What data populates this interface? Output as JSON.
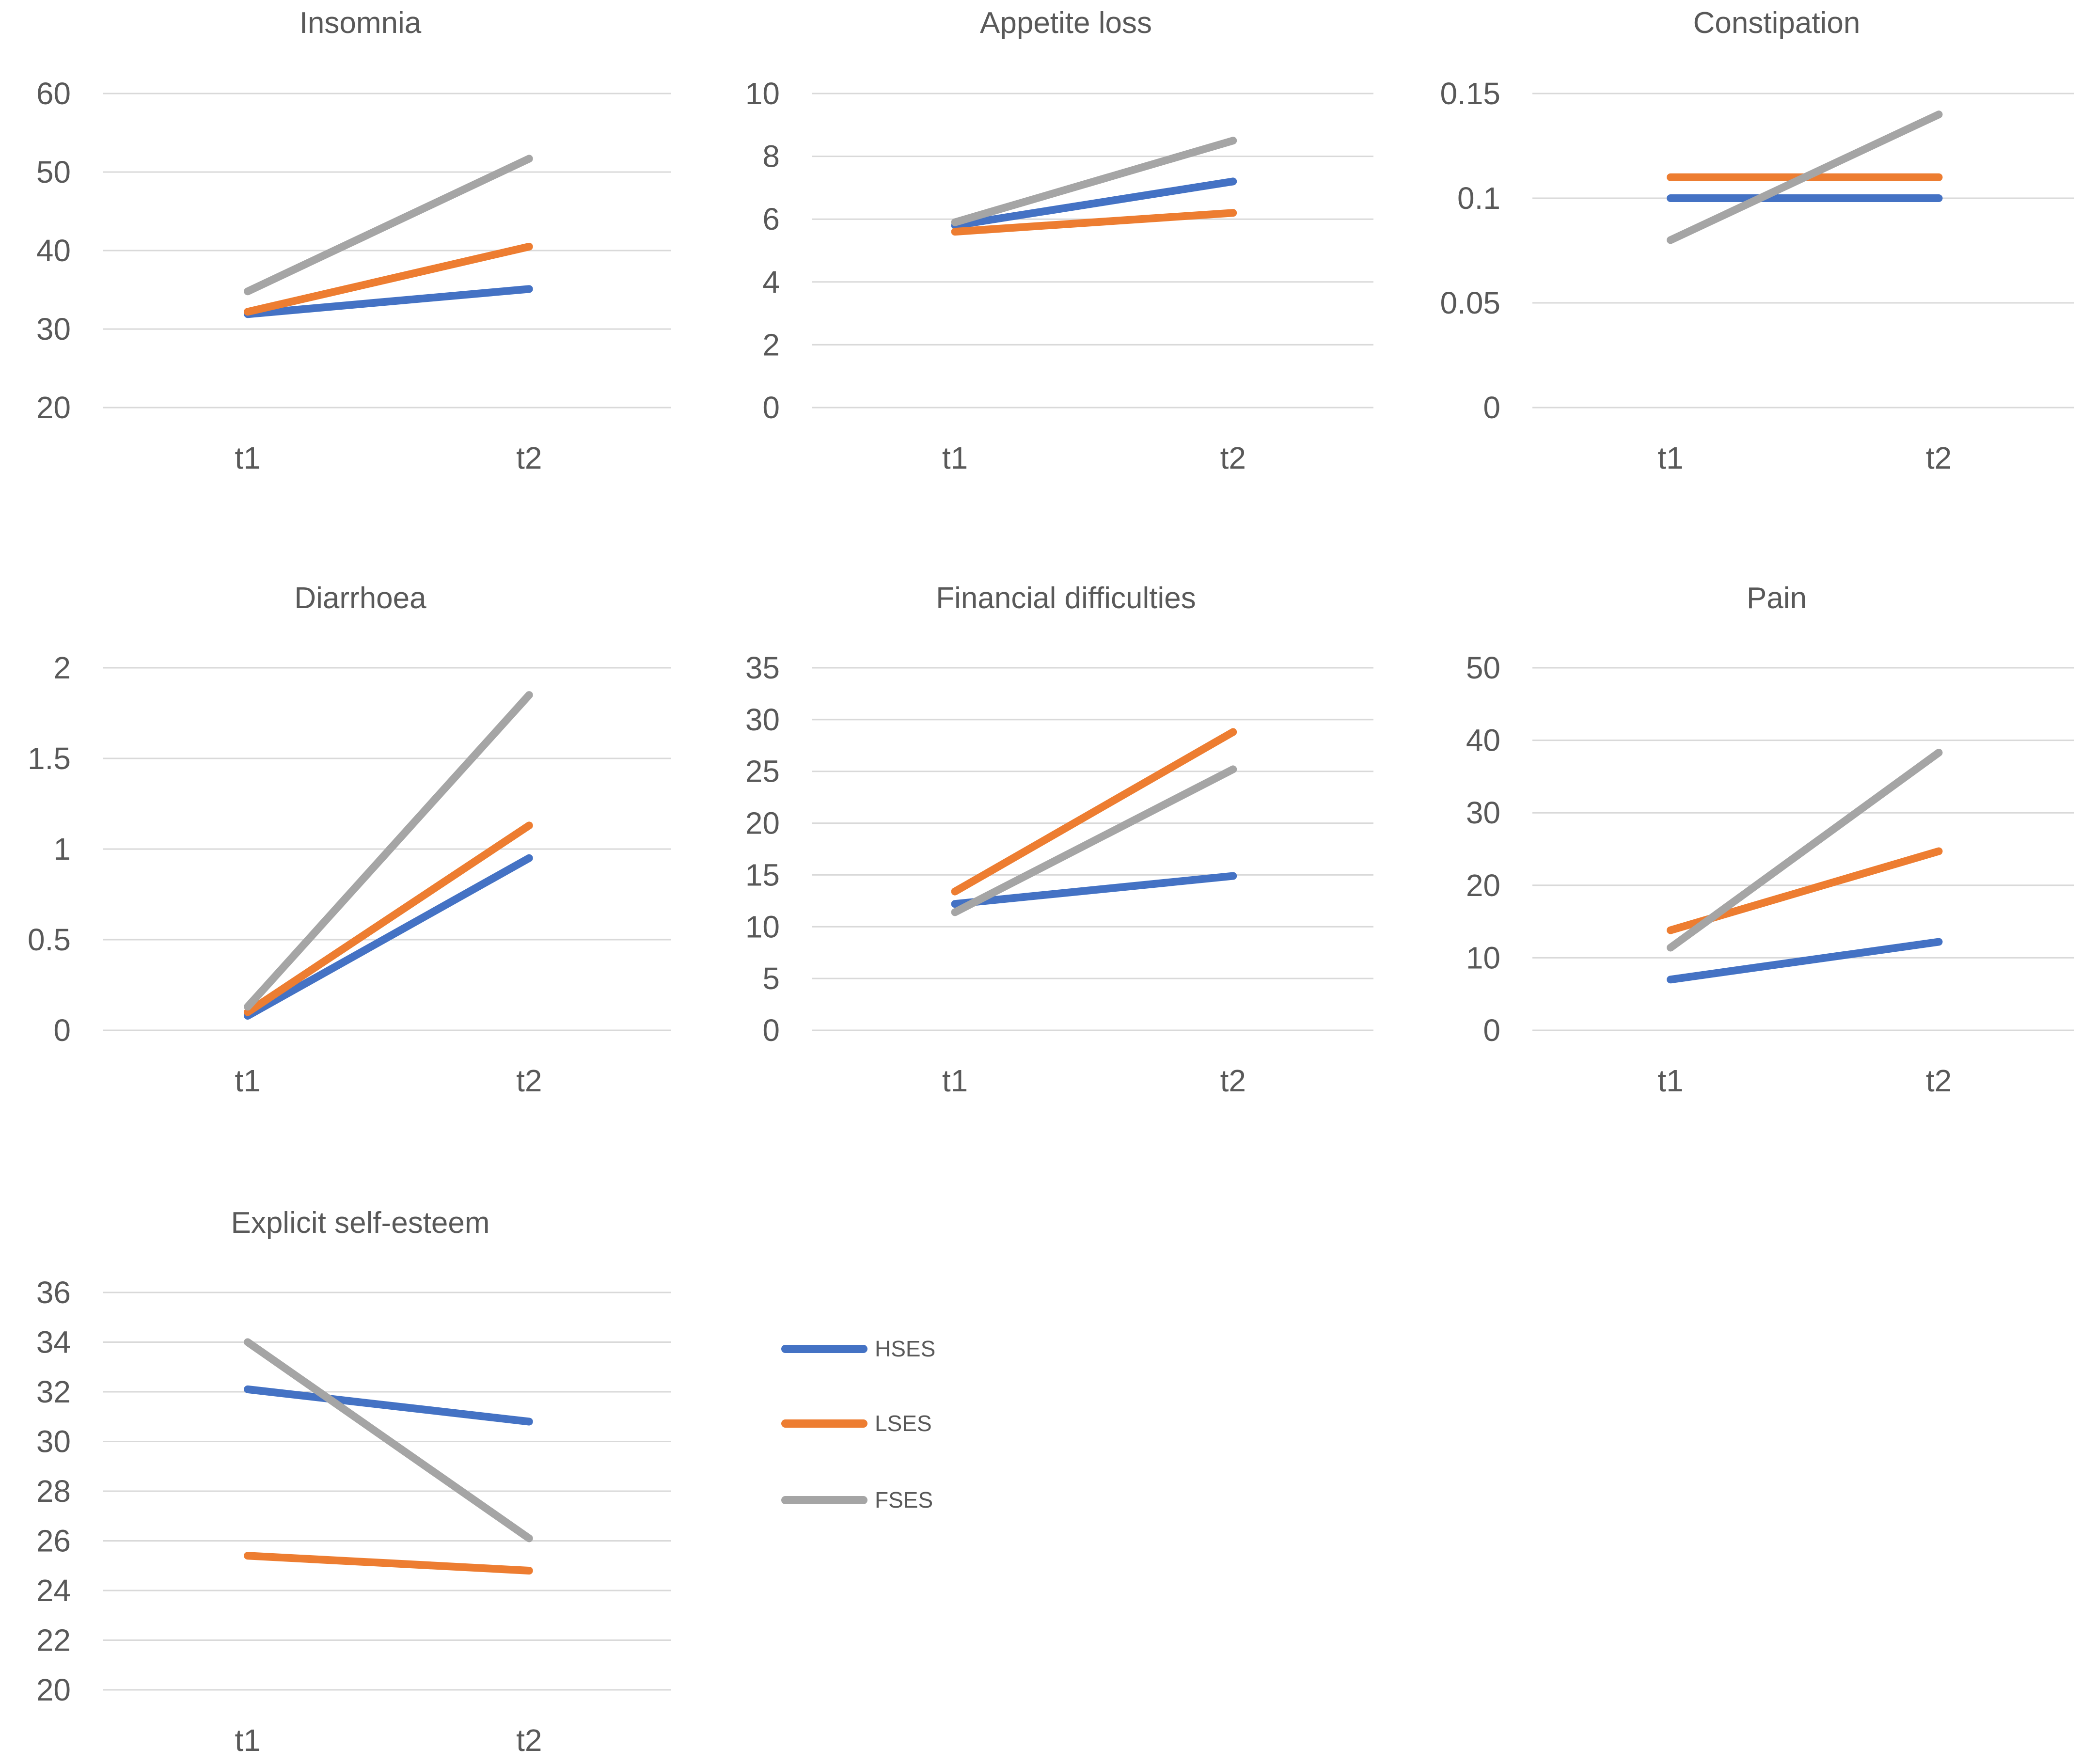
{
  "figure": {
    "background": "#FFFFFF",
    "grid_color": "#D9D9D9",
    "text_color": "#595959"
  },
  "legend": {
    "items": [
      {
        "label": "HSES",
        "color": "#4472C4"
      },
      {
        "label": "LSES",
        "color": "#ED7D31"
      },
      {
        "label": "FSES",
        "color": "#A5A5A5"
      }
    ]
  },
  "chart_data": [
    {
      "type": "line",
      "title": "Insomnia",
      "categories": [
        "t1",
        "t2"
      ],
      "ylim": [
        20,
        60
      ],
      "yticks": [
        20,
        30,
        40,
        50,
        60
      ],
      "ytick_labels": [
        "20",
        "30",
        "40",
        "50",
        "60"
      ],
      "series": [
        {
          "name": "HSES",
          "values": [
            31.9,
            35.1
          ]
        },
        {
          "name": "LSES",
          "values": [
            32.2,
            40.5
          ]
        },
        {
          "name": "FSES",
          "values": [
            34.8,
            51.7
          ]
        }
      ]
    },
    {
      "type": "line",
      "title": "Appetite loss",
      "categories": [
        "t1",
        "t2"
      ],
      "ylim": [
        0,
        10
      ],
      "yticks": [
        0,
        2,
        4,
        6,
        8,
        10
      ],
      "ytick_labels": [
        "0",
        "2",
        "4",
        "6",
        "8",
        "10"
      ],
      "series": [
        {
          "name": "HSES",
          "values": [
            5.8,
            7.2
          ]
        },
        {
          "name": "LSES",
          "values": [
            5.6,
            6.2
          ]
        },
        {
          "name": "FSES",
          "values": [
            5.9,
            8.5
          ]
        }
      ]
    },
    {
      "type": "line",
      "title": "Constipation",
      "categories": [
        "t1",
        "t2"
      ],
      "ylim": [
        0,
        0.15
      ],
      "yticks": [
        0,
        0.05,
        0.1,
        0.15
      ],
      "ytick_labels": [
        "0",
        "0.05",
        "0.1",
        "0.15"
      ],
      "series": [
        {
          "name": "HSES",
          "values": [
            0.1,
            0.1
          ]
        },
        {
          "name": "LSES",
          "values": [
            0.11,
            0.11
          ]
        },
        {
          "name": "FSES",
          "values": [
            0.08,
            0.14
          ]
        }
      ]
    },
    {
      "type": "line",
      "title": "Diarrhoea",
      "categories": [
        "t1",
        "t2"
      ],
      "ylim": [
        0,
        2
      ],
      "yticks": [
        0,
        0.5,
        1,
        1.5,
        2
      ],
      "ytick_labels": [
        "0",
        "0.5",
        "1",
        "1.5",
        "2"
      ],
      "series": [
        {
          "name": "HSES",
          "values": [
            0.08,
            0.95
          ]
        },
        {
          "name": "LSES",
          "values": [
            0.1,
            1.13
          ]
        },
        {
          "name": "FSES",
          "values": [
            0.13,
            1.85
          ]
        }
      ]
    },
    {
      "type": "line",
      "title": "Financial difficulties",
      "categories": [
        "t1",
        "t2"
      ],
      "ylim": [
        0,
        35
      ],
      "yticks": [
        0,
        5,
        10,
        15,
        20,
        25,
        30,
        35
      ],
      "ytick_labels": [
        "0",
        "5",
        "10",
        "15",
        "20",
        "25",
        "30",
        "35"
      ],
      "series": [
        {
          "name": "HSES",
          "values": [
            12.2,
            14.9
          ]
        },
        {
          "name": "LSES",
          "values": [
            13.4,
            28.8
          ]
        },
        {
          "name": "FSES",
          "values": [
            11.4,
            25.2
          ]
        }
      ]
    },
    {
      "type": "line",
      "title": "Pain",
      "categories": [
        "t1",
        "t2"
      ],
      "ylim": [
        0,
        50
      ],
      "yticks": [
        0,
        10,
        20,
        30,
        40,
        50
      ],
      "ytick_labels": [
        "0",
        "10",
        "20",
        "30",
        "40",
        "50"
      ],
      "series": [
        {
          "name": "HSES",
          "values": [
            7.0,
            12.2
          ]
        },
        {
          "name": "LSES",
          "values": [
            13.8,
            24.7
          ]
        },
        {
          "name": "FSES",
          "values": [
            11.4,
            38.3
          ]
        }
      ]
    },
    {
      "type": "line",
      "title": "Explicit self-esteem",
      "categories": [
        "t1",
        "t2"
      ],
      "ylim": [
        20,
        36
      ],
      "yticks": [
        20,
        22,
        24,
        26,
        28,
        30,
        32,
        34,
        36
      ],
      "ytick_labels": [
        "20",
        "22",
        "24",
        "26",
        "28",
        "30",
        "32",
        "34",
        "36"
      ],
      "series": [
        {
          "name": "HSES",
          "values": [
            32.1,
            30.8
          ]
        },
        {
          "name": "LSES",
          "values": [
            25.4,
            24.8
          ]
        },
        {
          "name": "FSES",
          "values": [
            34.0,
            26.1
          ]
        }
      ]
    }
  ]
}
